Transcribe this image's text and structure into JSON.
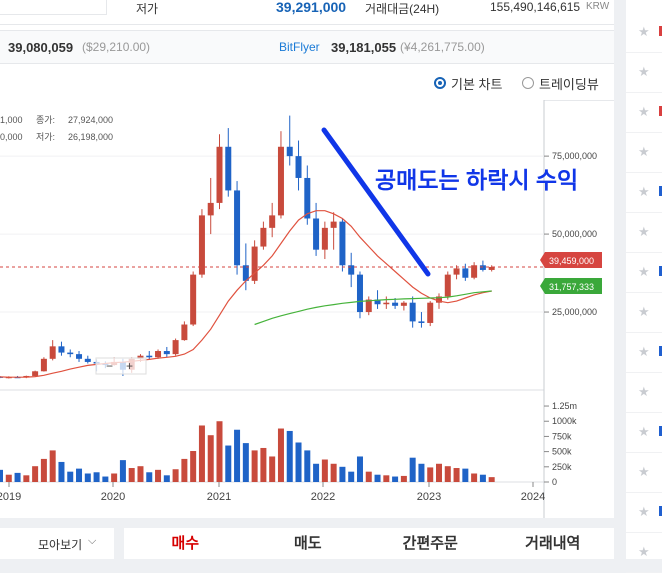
{
  "topbar": {
    "low_label": "저가",
    "low_value": "39,291,000",
    "volume_label": "거래대금(24H)",
    "volume_value": "155,490,146,615",
    "volume_unit": "KRW"
  },
  "exchange_row": {
    "left_price": "39,080,059",
    "left_usd": "($29,210.00)",
    "bitflyer_label": "BitFlyer",
    "bitflyer_price": "39,181,055",
    "bitflyer_jpy": "(¥4,261,775.00)"
  },
  "chart_options": {
    "basic_label": "기본 차트",
    "tradingview_label": "트레이딩뷰",
    "selected": "basic"
  },
  "info_box": {
    "line1_left": "1,000",
    "line1_label": "종가:",
    "line1_value": "27,924,000",
    "line2_left": "0,000",
    "line2_label": "저가:",
    "line2_value": "26,198,000"
  },
  "annotation": "공매도는 하락시 수익",
  "price_tags": {
    "current": "39,459,000",
    "ma": "31,757,333"
  },
  "colors": {
    "up": "#c84a3c",
    "down": "#1f63c7",
    "annotation": "#1036e8",
    "ma_red": "#e0523f",
    "ma_green": "#46b33b",
    "tag_red": "#d64540",
    "tag_green": "#3aa83a"
  },
  "chart_data": {
    "type": "candlestick",
    "x_ticks": [
      "2019",
      "2020",
      "2021",
      "2022",
      "2023",
      "2024"
    ],
    "y_ticks": [
      "75,000,000",
      "50,000,000",
      "25,000,000"
    ],
    "volume_ticks": [
      "1.25m",
      "1000k",
      "750k",
      "500k",
      "250k",
      "0"
    ],
    "ylim": [
      0,
      93000000
    ],
    "volume_ylim": [
      0,
      1300000
    ],
    "candles": [
      {
        "o": 4200000,
        "h": 4500000,
        "l": 3800000,
        "c": 3900000
      },
      {
        "o": 4000000,
        "h": 4400000,
        "l": 3700000,
        "c": 4100000
      },
      {
        "o": 4100000,
        "h": 4500000,
        "l": 3900000,
        "c": 4000000
      },
      {
        "o": 4000000,
        "h": 4600000,
        "l": 3800000,
        "c": 4500000
      },
      {
        "o": 4500000,
        "h": 6200000,
        "l": 4400000,
        "c": 6000000
      },
      {
        "o": 6000000,
        "h": 10500000,
        "l": 5900000,
        "c": 10000000
      },
      {
        "o": 10000000,
        "h": 16000000,
        "l": 9500000,
        "c": 14000000
      },
      {
        "o": 14000000,
        "h": 15500000,
        "l": 11000000,
        "c": 12000000
      },
      {
        "o": 12000000,
        "h": 13000000,
        "l": 10500000,
        "c": 11500000
      },
      {
        "o": 11500000,
        "h": 12500000,
        "l": 9000000,
        "c": 10000000
      },
      {
        "o": 10000000,
        "h": 11000000,
        "l": 8500000,
        "c": 9000000
      },
      {
        "o": 9000000,
        "h": 9800000,
        "l": 6000000,
        "c": 8500000
      },
      {
        "o": 8500000,
        "h": 9200000,
        "l": 7000000,
        "c": 8000000
      },
      {
        "o": 8000000,
        "h": 10500000,
        "l": 7800000,
        "c": 9000000
      },
      {
        "o": 9000000,
        "h": 10000000,
        "l": 4500000,
        "c": 6500000
      },
      {
        "o": 6500000,
        "h": 10500000,
        "l": 5500000,
        "c": 10000000
      },
      {
        "o": 10000000,
        "h": 11500000,
        "l": 9000000,
        "c": 11000000
      },
      {
        "o": 11000000,
        "h": 12500000,
        "l": 9800000,
        "c": 10500000
      },
      {
        "o": 10500000,
        "h": 13000000,
        "l": 10000000,
        "c": 12500000
      },
      {
        "o": 12500000,
        "h": 13800000,
        "l": 10500000,
        "c": 11500000
      },
      {
        "o": 11500000,
        "h": 16500000,
        "l": 11000000,
        "c": 16000000
      },
      {
        "o": 16000000,
        "h": 22000000,
        "l": 15800000,
        "c": 21000000
      },
      {
        "o": 21000000,
        "h": 38000000,
        "l": 20500000,
        "c": 37000000
      },
      {
        "o": 37000000,
        "h": 58000000,
        "l": 36000000,
        "c": 56000000
      },
      {
        "o": 56000000,
        "h": 68000000,
        "l": 50000000,
        "c": 60000000
      },
      {
        "o": 60000000,
        "h": 82000000,
        "l": 58000000,
        "c": 78000000
      },
      {
        "o": 78000000,
        "h": 84000000,
        "l": 62000000,
        "c": 64000000
      },
      {
        "o": 64000000,
        "h": 67000000,
        "l": 37000000,
        "c": 40000000
      },
      {
        "o": 40000000,
        "h": 47000000,
        "l": 32000000,
        "c": 35000000
      },
      {
        "o": 35000000,
        "h": 48000000,
        "l": 34000000,
        "c": 46000000
      },
      {
        "o": 46000000,
        "h": 54000000,
        "l": 45000000,
        "c": 52000000
      },
      {
        "o": 52000000,
        "h": 60000000,
        "l": 49000000,
        "c": 56000000
      },
      {
        "o": 56000000,
        "h": 83000000,
        "l": 55000000,
        "c": 78000000
      },
      {
        "o": 78000000,
        "h": 88000000,
        "l": 72000000,
        "c": 75000000
      },
      {
        "o": 75000000,
        "h": 80000000,
        "l": 64000000,
        "c": 68000000
      },
      {
        "o": 68000000,
        "h": 72000000,
        "l": 53000000,
        "c": 55000000
      },
      {
        "o": 55000000,
        "h": 60000000,
        "l": 43000000,
        "c": 45000000
      },
      {
        "o": 45000000,
        "h": 54000000,
        "l": 42000000,
        "c": 52000000
      },
      {
        "o": 52000000,
        "h": 57000000,
        "l": 45000000,
        "c": 54000000
      },
      {
        "o": 54000000,
        "h": 55000000,
        "l": 38000000,
        "c": 40000000
      },
      {
        "o": 40000000,
        "h": 44000000,
        "l": 33000000,
        "c": 37000000
      },
      {
        "o": 37000000,
        "h": 38000000,
        "l": 23000000,
        "c": 25000000
      },
      {
        "o": 25000000,
        "h": 30000000,
        "l": 24000000,
        "c": 29000000
      },
      {
        "o": 29000000,
        "h": 32000000,
        "l": 26000000,
        "c": 27500000
      },
      {
        "o": 27500000,
        "h": 30000000,
        "l": 26000000,
        "c": 28000000
      },
      {
        "o": 28000000,
        "h": 29500000,
        "l": 26000000,
        "c": 27000000
      },
      {
        "o": 27000000,
        "h": 28500000,
        "l": 25500000,
        "c": 28000000
      },
      {
        "o": 28000000,
        "h": 30000000,
        "l": 20000000,
        "c": 22000000
      },
      {
        "o": 22000000,
        "h": 25000000,
        "l": 20000000,
        "c": 21500000
      },
      {
        "o": 21500000,
        "h": 28500000,
        "l": 20500000,
        "c": 28000000
      },
      {
        "o": 28000000,
        "h": 31000000,
        "l": 26000000,
        "c": 30000000
      },
      {
        "o": 30000000,
        "h": 38000000,
        "l": 29000000,
        "c": 37000000
      },
      {
        "o": 37000000,
        "h": 40000000,
        "l": 35500000,
        "c": 39000000
      },
      {
        "o": 39000000,
        "h": 40500000,
        "l": 35000000,
        "c": 36000000
      },
      {
        "o": 36000000,
        "h": 41000000,
        "l": 35500000,
        "c": 40000000
      },
      {
        "o": 40000000,
        "h": 41500000,
        "l": 38000000,
        "c": 38500000
      },
      {
        "o": 38500000,
        "h": 40000000,
        "l": 38000000,
        "c": 39459000
      }
    ],
    "ma_red": [
      4200000,
      4100000,
      4100000,
      4150000,
      4300000,
      4700000,
      5400000,
      6000000,
      6700000,
      7300000,
      7900000,
      8200000,
      8500000,
      8800000,
      8900000,
      9200000,
      9500000,
      9800000,
      10200000,
      10500000,
      10800000,
      11500000,
      13000000,
      16000000,
      19500000,
      24000000,
      28500000,
      32000000,
      35000000,
      37500000,
      40000000,
      43000000,
      47000000,
      51000000,
      54500000,
      56500000,
      57500000,
      57500000,
      56500000,
      55000000,
      52500000,
      49000000,
      46000000,
      43000000,
      40500000,
      38000000,
      35500000,
      33000000,
      31000000,
      29500000,
      28500000,
      28000000,
      28500000,
      29500000,
      30500000,
      31200000,
      31757333
    ],
    "ma_green": {
      "start_index": 29,
      "values": [
        21000000,
        22000000,
        23000000,
        23800000,
        24500000,
        25200000,
        25900000,
        26500000,
        27000000,
        27400000,
        27800000,
        28100000,
        28400000,
        28600000,
        28800000,
        29000000,
        29100000,
        29200000,
        29300000,
        29400000,
        29500000,
        29600000,
        29800000,
        30200000,
        30700000,
        31200000,
        31500000,
        31757333
      ]
    },
    "volumes": [
      200000,
      120000,
      150000,
      110000,
      260000,
      380000,
      520000,
      330000,
      170000,
      220000,
      140000,
      160000,
      90000,
      140000,
      360000,
      230000,
      260000,
      160000,
      200000,
      110000,
      210000,
      380000,
      510000,
      930000,
      770000,
      1000000,
      600000,
      860000,
      640000,
      520000,
      560000,
      420000,
      880000,
      840000,
      650000,
      520000,
      300000,
      370000,
      300000,
      250000,
      170000,
      420000,
      170000,
      120000,
      110000,
      90000,
      100000,
      400000,
      300000,
      240000,
      300000,
      260000,
      230000,
      220000,
      140000,
      120000,
      80000
    ]
  }
}
